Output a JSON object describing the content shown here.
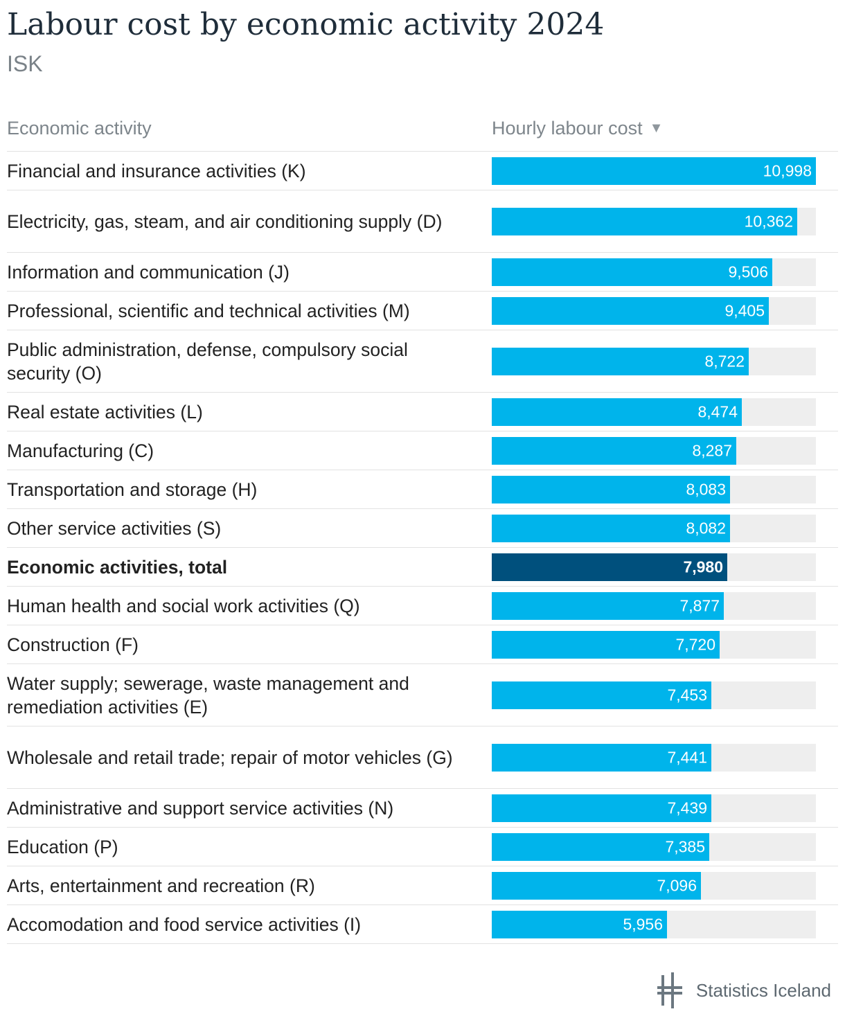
{
  "header": {
    "title": "Labour cost by economic activity 2024",
    "subtitle": "ISK"
  },
  "columns": {
    "activity": "Economic activity",
    "value": "Hourly labour cost",
    "sort_icon": "triangle-down-icon"
  },
  "colors": {
    "bar": "#00b4eb",
    "total_bar": "#00507d",
    "track": "#eeeeee"
  },
  "chart_data": {
    "type": "bar",
    "orientation": "horizontal",
    "title": "Labour cost by economic activity 2024",
    "subtitle": "ISK",
    "xlim": [
      0,
      10998
    ],
    "categories": [
      "Financial and insurance activities (K)",
      "Electricity, gas, steam, and air conditioning supply (D)",
      "Information and communication (J)",
      "Professional, scientific and technical activities (M)",
      "Public administration, defense, compulsory social security (O)",
      "Real estate activities (L)",
      "Manufacturing (C)",
      "Transportation and storage (H)",
      "Other service activities (S)",
      "Economic activities, total",
      "Human health and social work activities (Q)",
      "Construction (F)",
      "Water supply; sewerage, waste management and remediation activities (E)",
      "Wholesale and retail trade; repair of motor vehicles (G)",
      "Administrative and support service activities (N)",
      "Education (P)",
      "Arts, entertainment and recreation (R)",
      "Accomodation and food service activities (I)"
    ],
    "values": [
      10998,
      10362,
      9506,
      9405,
      8722,
      8474,
      8287,
      8083,
      8082,
      7980,
      7877,
      7720,
      7453,
      7441,
      7439,
      7385,
      7096,
      5956
    ],
    "value_labels": [
      "10,998",
      "10,362",
      "9,506",
      "9,405",
      "8,722",
      "8,474",
      "8,287",
      "8,083",
      "8,082",
      "7,980",
      "7,877",
      "7,720",
      "7,453",
      "7,441",
      "7,439",
      "7,385",
      "7,096",
      "5,956"
    ],
    "highlighted_category": "Economic activities, total"
  },
  "footer": {
    "logo_icon": "statistics-iceland-logo-icon",
    "logo_text": "Statistics Iceland"
  }
}
